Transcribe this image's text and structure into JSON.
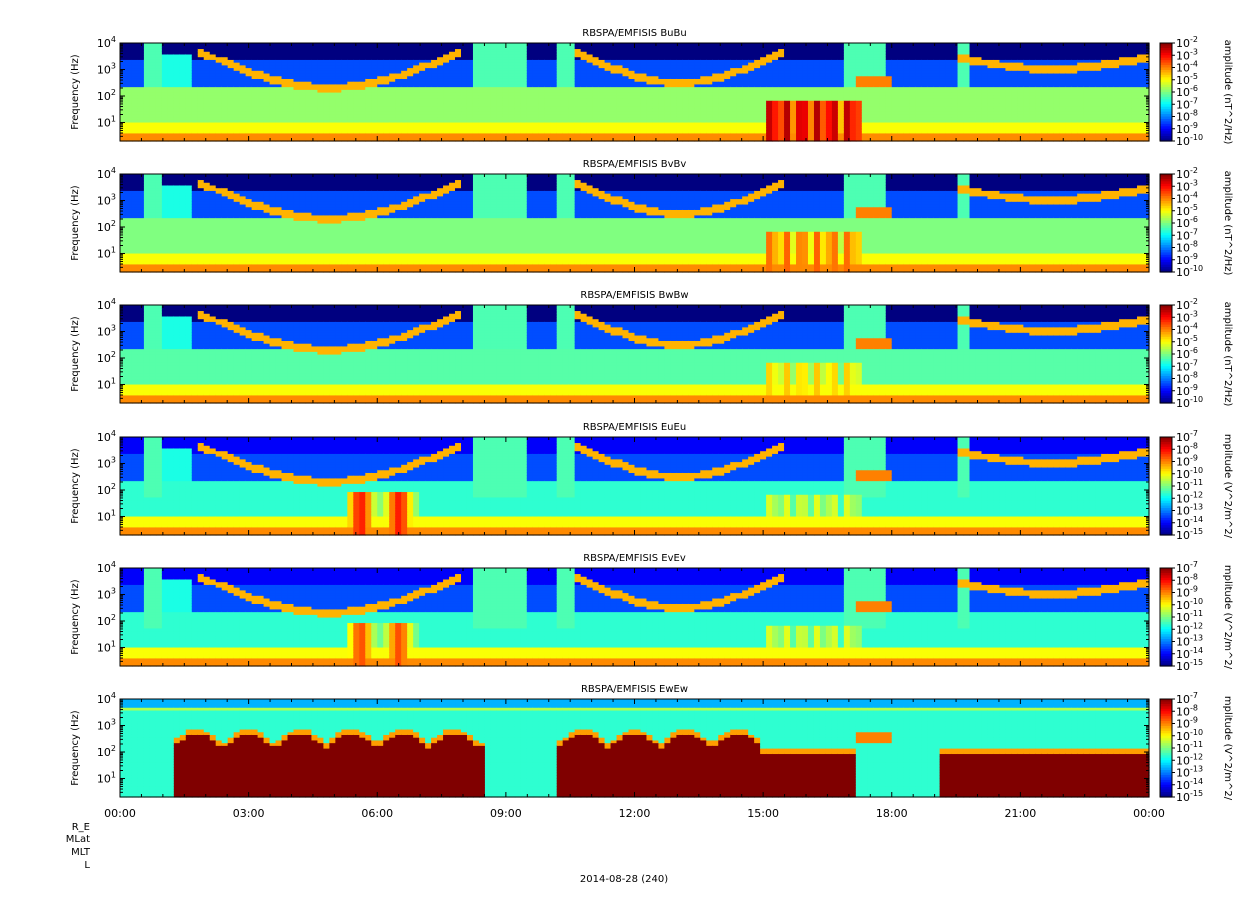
{
  "chart_data": {
    "type": "heatmap",
    "date": "2014-08-28 (240)",
    "xaxis": {
      "ticks": [
        "00:00",
        "03:00",
        "06:00",
        "09:00",
        "12:00",
        "15:00",
        "18:00",
        "21:00",
        "00:00"
      ],
      "range_hours": [
        0,
        24
      ]
    },
    "ephemeris_labels": [
      "R_E",
      "MLat",
      "MLT",
      "L"
    ],
    "panels": [
      {
        "title": "RBSPA/EMFISIS  BuBu",
        "ylabel": "Frequency (Hz)",
        "yscale": "log",
        "ylim": [
          2,
          10000
        ],
        "yticks": [
          "10^1",
          "10^2",
          "10^3",
          "10^4"
        ],
        "colorbar_label": "amplitude (nT^2/Hz)",
        "colorbar_ticks": [
          "10^-2",
          "10^-3",
          "10^-4",
          "10^-5",
          "10^-6",
          "10^-7",
          "10^-8",
          "10^-9",
          "10^-10"
        ],
        "clim_exp": [
          -10,
          -2
        ],
        "features": {
          "base": 0.52,
          "chorus": true,
          "wavy_15_17": 0.95
        }
      },
      {
        "title": "RBSPA/EMFISIS  BvBv",
        "ylabel": "Frequency (Hz)",
        "yscale": "log",
        "ylim": [
          2,
          10000
        ],
        "yticks": [
          "10^1",
          "10^2",
          "10^3",
          "10^4"
        ],
        "colorbar_label": "amplitude (nT^2/Hz)",
        "colorbar_ticks": [
          "10^-2",
          "10^-3",
          "10^-4",
          "10^-5",
          "10^-6",
          "10^-7",
          "10^-8",
          "10^-9",
          "10^-10"
        ],
        "clim_exp": [
          -10,
          -2
        ],
        "features": {
          "base": 0.5,
          "chorus": true,
          "wavy_15_17": 0.78
        }
      },
      {
        "title": "RBSPA/EMFISIS  BwBw",
        "ylabel": "Frequency (Hz)",
        "yscale": "log",
        "ylim": [
          2,
          10000
        ],
        "yticks": [
          "10^1",
          "10^2",
          "10^3",
          "10^4"
        ],
        "colorbar_label": "amplitude (nT^2/Hz)",
        "colorbar_ticks": [
          "10^-2",
          "10^-3",
          "10^-4",
          "10^-5",
          "10^-6",
          "10^-7",
          "10^-8",
          "10^-9",
          "10^-10"
        ],
        "clim_exp": [
          -10,
          -2
        ],
        "features": {
          "base": 0.46,
          "chorus": true,
          "wavy_15_17": 0.68
        }
      },
      {
        "title": "RBSPA/EMFISIS  EuEu",
        "ylabel": "Frequency (Hz)",
        "yscale": "log",
        "ylim": [
          2,
          10000
        ],
        "yticks": [
          "10^1",
          "10^2",
          "10^3",
          "10^4"
        ],
        "colorbar_label": "mplitude (V^2/m^2/",
        "colorbar_ticks": [
          "10^-7",
          "10^-8",
          "10^-9",
          "10^-10",
          "10^-11",
          "10^-12",
          "10^-13",
          "10^-14",
          "10^-15"
        ],
        "clim_exp": [
          -15,
          -7
        ],
        "features": {
          "base": 0.42,
          "chorus": true,
          "wavy_15_17": 0.6,
          "hot_05_07": 0.85
        }
      },
      {
        "title": "RBSPA/EMFISIS  EvEv",
        "ylabel": "Frequency (Hz)",
        "yscale": "log",
        "ylim": [
          2,
          10000
        ],
        "yticks": [
          "10^1",
          "10^2",
          "10^3",
          "10^4"
        ],
        "colorbar_label": "mplitude (V^2/m^2/",
        "colorbar_ticks": [
          "10^-7",
          "10^-8",
          "10^-9",
          "10^-10",
          "10^-11",
          "10^-12",
          "10^-13",
          "10^-14",
          "10^-15"
        ],
        "clim_exp": [
          -15,
          -7
        ],
        "features": {
          "base": 0.42,
          "chorus": true,
          "wavy_15_17": 0.6,
          "hot_05_07": 0.8
        }
      },
      {
        "title": "RBSPA/EMFISIS  EwEw",
        "ylabel": "Frequency (Hz)",
        "yscale": "log",
        "ylim": [
          2,
          10000
        ],
        "yticks": [
          "10^1",
          "10^2",
          "10^3",
          "10^4"
        ],
        "colorbar_label": "mplitude (V^2/m^2/",
        "colorbar_ticks": [
          "10^-7",
          "10^-8",
          "10^-9",
          "10^-10",
          "10^-11",
          "10^-12",
          "10^-13",
          "10^-14",
          "10^-15"
        ],
        "clim_exp": [
          -15,
          -7
        ],
        "features": {
          "base": 0.45,
          "chorus": false,
          "red_domes": true
        }
      }
    ]
  }
}
